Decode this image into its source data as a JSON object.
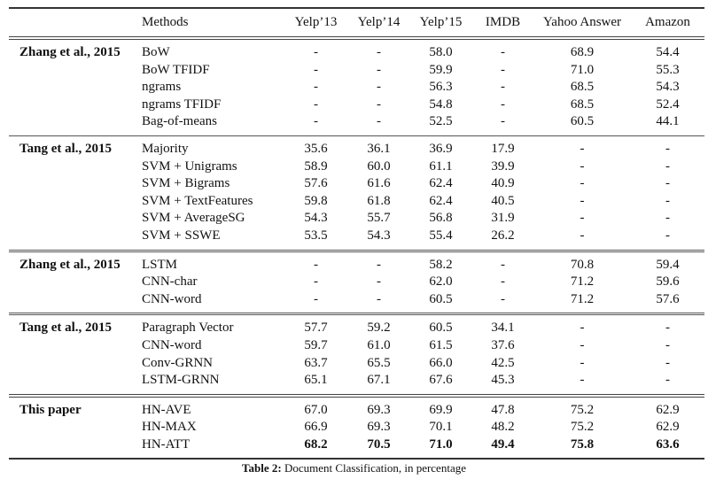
{
  "table": {
    "columns": [
      "",
      "Methods",
      "Yelp’13",
      "Yelp’14",
      "Yelp’15",
      "IMDB",
      "Yahoo Answer",
      "Amazon"
    ],
    "groups": [
      {
        "source": "Zhang et al., 2015",
        "rows": [
          {
            "method": "BoW",
            "values": [
              "-",
              "-",
              "58.0",
              "-",
              "68.9",
              "54.4"
            ]
          },
          {
            "method": "BoW TFIDF",
            "values": [
              "-",
              "-",
              "59.9",
              "-",
              "71.0",
              "55.3"
            ]
          },
          {
            "method": "ngrams",
            "values": [
              "-",
              "-",
              "56.3",
              "-",
              "68.5",
              "54.3"
            ]
          },
          {
            "method": "ngrams TFIDF",
            "values": [
              "-",
              "-",
              "54.8",
              "-",
              "68.5",
              "52.4"
            ]
          },
          {
            "method": "Bag-of-means",
            "values": [
              "-",
              "-",
              "52.5",
              "-",
              "60.5",
              "44.1"
            ]
          }
        ]
      },
      {
        "source": "Tang et al., 2015",
        "rows": [
          {
            "method": "Majority",
            "values": [
              "35.6",
              "36.1",
              "36.9",
              "17.9",
              "-",
              "-"
            ]
          },
          {
            "method": "SVM + Unigrams",
            "values": [
              "58.9",
              "60.0",
              "61.1",
              "39.9",
              "-",
              "-"
            ]
          },
          {
            "method": "SVM + Bigrams",
            "values": [
              "57.6",
              "61.6",
              "62.4",
              "40.9",
              "-",
              "-"
            ]
          },
          {
            "method": "SVM + TextFeatures",
            "values": [
              "59.8",
              "61.8",
              "62.4",
              "40.5",
              "-",
              "-"
            ]
          },
          {
            "method": "SVM + AverageSG",
            "values": [
              "54.3",
              "55.7",
              "56.8",
              "31.9",
              "-",
              "-"
            ]
          },
          {
            "method": "SVM + SSWE",
            "values": [
              "53.5",
              "54.3",
              "55.4",
              "26.2",
              "-",
              "-"
            ]
          }
        ]
      },
      {
        "source": "Zhang et al., 2015",
        "rows": [
          {
            "method": "LSTM",
            "values": [
              "-",
              "-",
              "58.2",
              "-",
              "70.8",
              "59.4"
            ]
          },
          {
            "method": "CNN-char",
            "values": [
              "-",
              "-",
              "62.0",
              "-",
              "71.2",
              "59.6"
            ]
          },
          {
            "method": "CNN-word",
            "values": [
              "-",
              "-",
              "60.5",
              "-",
              "71.2",
              "57.6"
            ]
          }
        ]
      },
      {
        "source": "Tang et al., 2015",
        "rows": [
          {
            "method": "Paragraph Vector",
            "values": [
              "57.7",
              "59.2",
              "60.5",
              "34.1",
              "-",
              "-"
            ]
          },
          {
            "method": "CNN-word",
            "values": [
              "59.7",
              "61.0",
              "61.5",
              "37.6",
              "-",
              "-"
            ]
          },
          {
            "method": "Conv-GRNN",
            "values": [
              "63.7",
              "65.5",
              "66.0",
              "42.5",
              "-",
              "-"
            ]
          },
          {
            "method": "LSTM-GRNN",
            "values": [
              "65.1",
              "67.1",
              "67.6",
              "45.3",
              "-",
              "-"
            ]
          }
        ]
      },
      {
        "source": "This paper",
        "rows": [
          {
            "method": "HN-AVE",
            "values": [
              "67.0",
              "69.3",
              "69.9",
              "47.8",
              "75.2",
              "62.9"
            ]
          },
          {
            "method": "HN-MAX",
            "values": [
              "66.9",
              "69.3",
              "70.1",
              "48.2",
              "75.2",
              "62.9"
            ]
          },
          {
            "method": "HN-ATT",
            "values": [
              "68.2",
              "70.5",
              "71.0",
              "49.4",
              "75.8",
              "63.6"
            ],
            "bold": true
          }
        ]
      }
    ]
  },
  "caption": {
    "label": "Table 2:",
    "text": "Document Classification, in percentage"
  }
}
